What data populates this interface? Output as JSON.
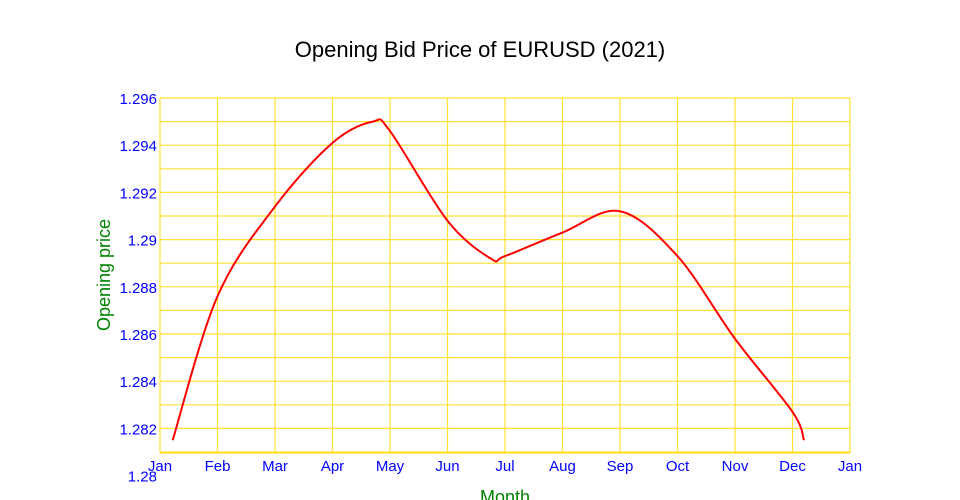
{
  "chart_data": {
    "type": "line",
    "title": "Opening Bid Price of EURUSD (2021)",
    "xlabel": "Month",
    "ylabel": "Opening price",
    "x_ticks": [
      "Jan",
      "Feb",
      "Mar",
      "Apr",
      "May",
      "Jun",
      "Jul",
      "Aug",
      "Sep",
      "Oct",
      "Nov",
      "Dec",
      "Jan"
    ],
    "y_ticks": [
      "1.28",
      "1.282",
      "1.284",
      "1.286",
      "1.288",
      "1.29",
      "1.292",
      "1.294",
      "1.296"
    ],
    "y_tick_values": [
      1.28,
      1.282,
      1.284,
      1.286,
      1.288,
      1.29,
      1.292,
      1.294,
      1.296
    ],
    "xlim": [
      0,
      12
    ],
    "ylim": [
      1.281,
      1.296
    ],
    "grid": true,
    "x_unit": "months since Jan 1",
    "series": [
      {
        "name": "Opening price",
        "color": "#ff0000",
        "x": [
          0.22,
          1,
          2,
          3,
          3.7,
          4,
          5,
          5.75,
          6,
          7,
          8,
          9,
          10,
          11,
          11.2
        ],
        "y": [
          1.2815,
          1.2876,
          1.2914,
          1.2941,
          1.295,
          1.2946,
          1.2908,
          1.2892,
          1.2893,
          1.2903,
          1.2912,
          1.2893,
          1.2858,
          1.2827,
          1.2815
        ]
      }
    ],
    "colors": {
      "grid": "#ffe033",
      "ticks": "#0000ff",
      "axis_labels": "#008000",
      "title": "#000000"
    }
  }
}
